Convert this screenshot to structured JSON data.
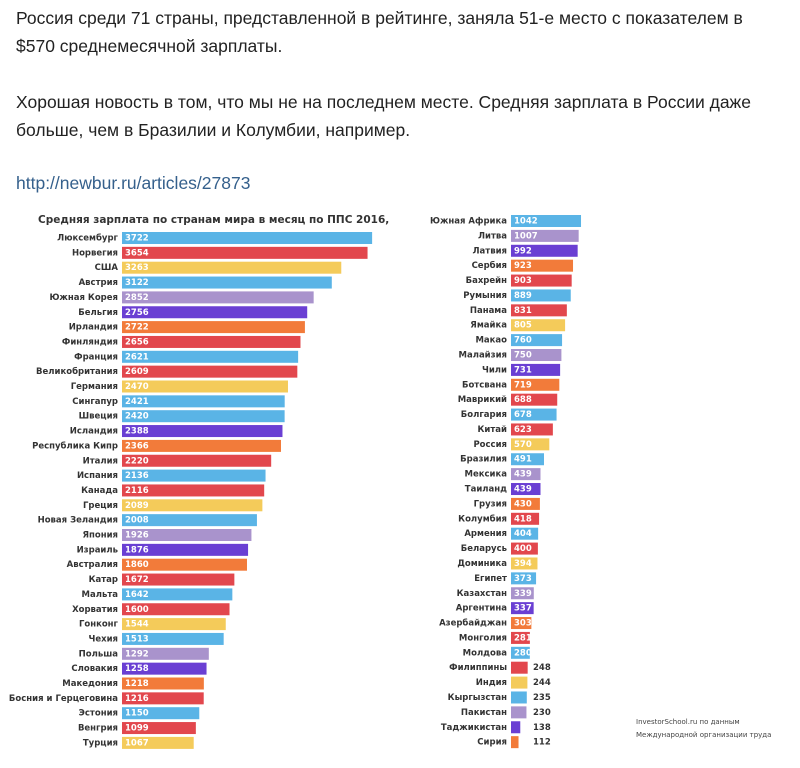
{
  "post": {
    "paragraphs": [
      "Россия среди 71 страны, представленной в рейтинге, заняла 51-е место с показателем в $570 среднемесячной зарплаты.",
      "Хорошая новость в том, что мы не на последнем месте. Средняя зарплата в России даже больше, чем в Бразилии и Колумбии, например."
    ],
    "link": "http://newbur.ru/articles/27873"
  },
  "chart_data": [
    {
      "type": "bar",
      "orientation": "horizontal",
      "title": "Средняя зарплата по странам мира в месяц по ППС 2016, $",
      "categories": [
        "Люксембург",
        "Норвегия",
        "США",
        "Австрия",
        "Южная Корея",
        "Бельгия",
        "Ирландия",
        "Финляндия",
        "Франция",
        "Великобритания",
        "Германия",
        "Сингапур",
        "Швеция",
        "Исландия",
        "Республика Кипр",
        "Италия",
        "Испания",
        "Канада",
        "Греция",
        "Новая Зеландия",
        "Япония",
        "Израиль",
        "Австралия",
        "Катар",
        "Мальта",
        "Хорватия",
        "Гонконг",
        "Чехия",
        "Польша",
        "Словакия",
        "Македония",
        "Босния и Герцеговина",
        "Эстония",
        "Венгрия",
        "Турция"
      ],
      "values": [
        3722,
        3654,
        3263,
        3122,
        2852,
        2756,
        2722,
        2656,
        2621,
        2609,
        2470,
        2421,
        2420,
        2388,
        2366,
        2220,
        2136,
        2116,
        2089,
        2008,
        1926,
        1876,
        1860,
        1672,
        1642,
        1600,
        1544,
        1513,
        1292,
        1258,
        1218,
        1216,
        1150,
        1099,
        1067
      ],
      "colors": [
        "#5ab4e6",
        "#e2474d",
        "#f4cb5a",
        "#5ab4e6",
        "#a993cc",
        "#6a3fd3",
        "#f27b3a",
        "#e2474d",
        "#5ab4e6",
        "#e2474d",
        "#f4cb5a",
        "#5ab4e6",
        "#5ab4e6",
        "#6a3fd3",
        "#f27b3a",
        "#e2474d",
        "#5ab4e6",
        "#e2474d",
        "#f4cb5a",
        "#5ab4e6",
        "#a993cc",
        "#6a3fd3",
        "#f27b3a",
        "#e2474d",
        "#5ab4e6",
        "#e2474d",
        "#f4cb5a",
        "#5ab4e6",
        "#a993cc",
        "#6a3fd3",
        "#f27b3a",
        "#e2474d",
        "#5ab4e6",
        "#e2474d",
        "#f4cb5a"
      ]
    },
    {
      "type": "bar",
      "orientation": "horizontal",
      "categories": [
        "Южная Африка",
        "Литва",
        "Латвия",
        "Сербия",
        "Бахрейн",
        "Румыния",
        "Панама",
        "Ямайка",
        "Макао",
        "Малайзия",
        "Чили",
        "Ботсвана",
        "Маврикий",
        "Болгария",
        "Китай",
        "Россия",
        "Бразилия",
        "Мексика",
        "Таиланд",
        "Грузия",
        "Колумбия",
        "Армения",
        "Беларусь",
        "Доминика",
        "Египет",
        "Казахстан",
        "Аргентина",
        "Азербайджан",
        "Монголия",
        "Молдова",
        "Филиппины",
        "Индия",
        "Кыргызстан",
        "Пакистан",
        "Таджикистан",
        "Сирия"
      ],
      "values": [
        1042,
        1007,
        992,
        923,
        903,
        889,
        831,
        805,
        760,
        750,
        731,
        719,
        688,
        678,
        623,
        570,
        491,
        439,
        439,
        430,
        418,
        404,
        400,
        394,
        373,
        339,
        337,
        303,
        281,
        280,
        248,
        244,
        235,
        230,
        138,
        112
      ],
      "colors": [
        "#5ab4e6",
        "#a993cc",
        "#6a3fd3",
        "#f27b3a",
        "#e2474d",
        "#5ab4e6",
        "#e2474d",
        "#f4cb5a",
        "#5ab4e6",
        "#a993cc",
        "#6a3fd3",
        "#f27b3a",
        "#e2474d",
        "#5ab4e6",
        "#e2474d",
        "#f4cb5a",
        "#5ab4e6",
        "#a993cc",
        "#6a3fd3",
        "#f27b3a",
        "#e2474d",
        "#5ab4e6",
        "#e2474d",
        "#f4cb5a",
        "#5ab4e6",
        "#a993cc",
        "#6a3fd3",
        "#f27b3a",
        "#e2474d",
        "#5ab4e6",
        "#e2474d",
        "#f4cb5a",
        "#5ab4e6",
        "#a993cc",
        "#6a3fd3",
        "#f27b3a"
      ],
      "footnote": [
        "InvestorSchool.ru по данным",
        "Международной организации труда"
      ]
    }
  ]
}
